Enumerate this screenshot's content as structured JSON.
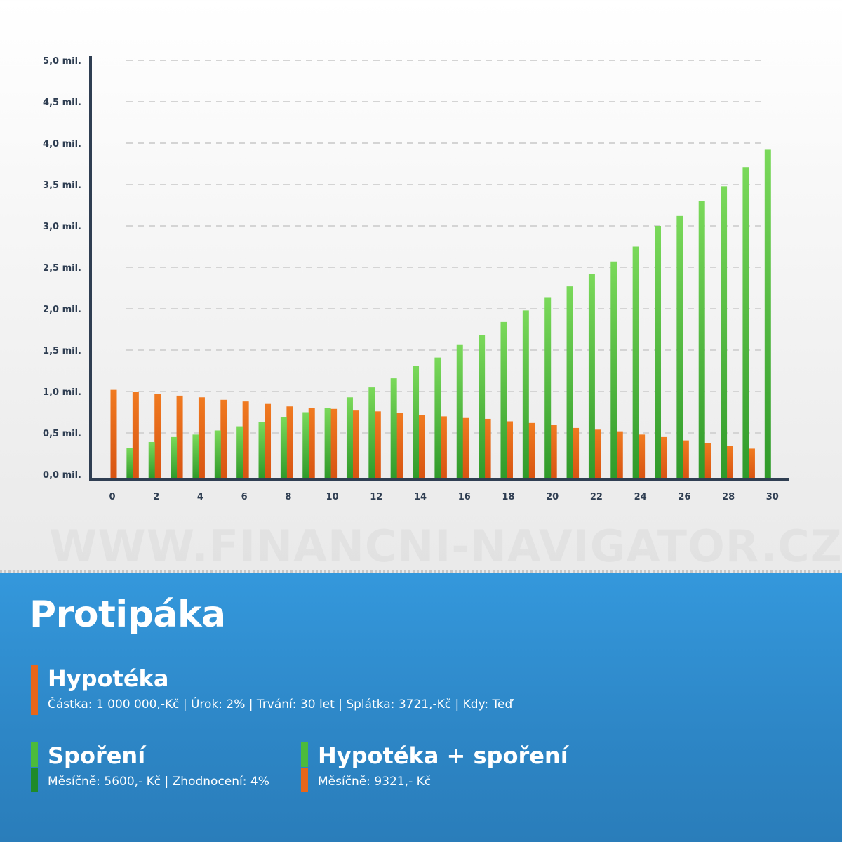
{
  "chart_data": {
    "type": "bar",
    "x": [
      0,
      1,
      2,
      3,
      4,
      5,
      6,
      7,
      8,
      9,
      10,
      11,
      12,
      13,
      14,
      15,
      16,
      17,
      18,
      19,
      20,
      21,
      22,
      23,
      24,
      25,
      26,
      27,
      28,
      29,
      30
    ],
    "xticks": [
      0,
      2,
      4,
      6,
      8,
      10,
      12,
      14,
      16,
      18,
      20,
      22,
      24,
      26,
      28,
      30
    ],
    "xtick_labels": [
      "0",
      "2",
      "4",
      "6",
      "8",
      "10",
      "12",
      "14",
      "16",
      "18",
      "20",
      "22",
      "24",
      "26",
      "28",
      "30"
    ],
    "yticks": [
      0,
      0.5,
      1.0,
      1.5,
      2.0,
      2.5,
      3.0,
      3.5,
      4.0,
      4.5,
      5.0
    ],
    "ytick_labels": [
      "0,0 mil.",
      "0,5 mil.",
      "1,0 mil.",
      "1,5 mil.",
      "2,0 mil.",
      "2,5 mil.",
      "3,0 mil.",
      "3,5 mil.",
      "4,0 mil.",
      "4,5 mil.",
      "5,0 mil."
    ],
    "ylim": [
      0,
      5.0
    ],
    "xlim": [
      0,
      30
    ],
    "grid": "horizontal-dashed",
    "series": [
      {
        "name": "Hypotéka",
        "color": "#e8661a",
        "values": [
          1.02,
          1.0,
          0.97,
          0.95,
          0.93,
          0.9,
          0.88,
          0.85,
          0.82,
          0.8,
          0.79,
          0.77,
          0.76,
          0.74,
          0.72,
          0.7,
          0.68,
          0.67,
          0.64,
          0.62,
          0.6,
          0.56,
          0.54,
          0.52,
          0.48,
          0.45,
          0.41,
          0.38,
          0.34,
          0.31,
          null
        ]
      },
      {
        "name": "Spoření",
        "color": "#4cbb3c",
        "values": [
          null,
          0.32,
          0.39,
          0.45,
          0.48,
          0.53,
          0.58,
          0.63,
          0.69,
          0.75,
          0.8,
          0.93,
          1.05,
          1.16,
          1.31,
          1.41,
          1.57,
          1.68,
          1.84,
          1.98,
          2.14,
          2.27,
          2.42,
          2.57,
          2.75,
          3.0,
          3.12,
          3.3,
          3.48,
          3.71,
          3.92
        ]
      }
    ]
  },
  "watermark": "WWW.FINANCNI-NAVIGATOR.CZ",
  "panel": {
    "title": "Protipáka",
    "legend": [
      {
        "name": "Hypotéka",
        "details": "Částka: 1 000 000,-Kč | Úrok: 2% | Trvání: 30 let | Splátka: 3721,-Kč | Kdy: Teď",
        "swatch_top": "#e8661a",
        "swatch_bottom": "#e8661a"
      },
      {
        "name": "Spoření",
        "details": "Měsíčně: 5600,- Kč | Zhodnocení: 4%",
        "swatch_top": "#4cbb3c",
        "swatch_bottom": "#1f8a2a"
      },
      {
        "name": "Hypotéka + spoření",
        "details": "Měsíčně: 9321,- Kč",
        "swatch_top": "#4cbb3c",
        "swatch_bottom": "#e8661a"
      }
    ]
  }
}
